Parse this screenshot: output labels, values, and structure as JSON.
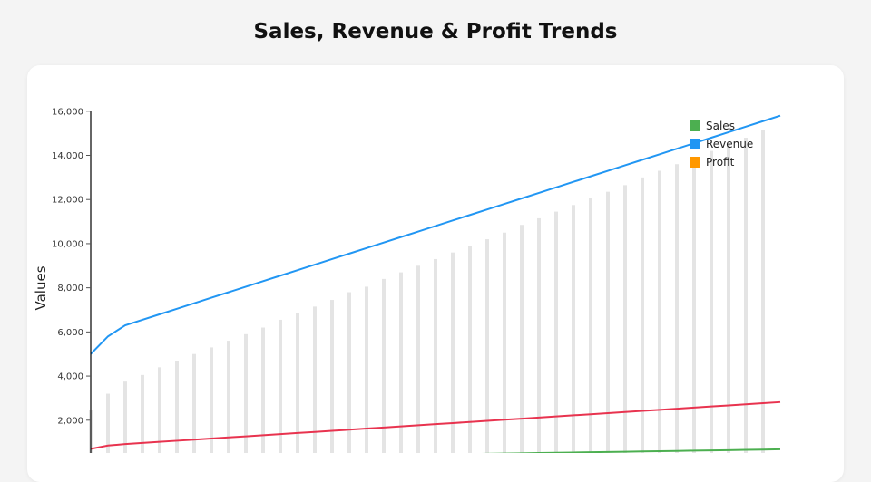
{
  "chart_data": {
    "type": "line",
    "title": "Sales, Revenue & Profit Trends",
    "xlabel": "",
    "ylabel": "Values",
    "ylim": [
      0,
      16000
    ],
    "yticks": [
      "2,000",
      "4,000",
      "6,000",
      "8,000",
      "10,000",
      "12,000",
      "14,000",
      "16,000"
    ],
    "ytick_values": [
      2000,
      4000,
      6000,
      8000,
      10000,
      12000,
      14000,
      16000
    ],
    "legend_position": "top-right",
    "grid": false,
    "bars": {
      "color": "#e4e4e4",
      "values": [
        2450,
        3200,
        3750,
        4050,
        4400,
        4700,
        5000,
        5300,
        5600,
        5900,
        6200,
        6550,
        6850,
        7150,
        7450,
        7800,
        8050,
        8400,
        8700,
        9000,
        9300,
        9600,
        9900,
        10200,
        10500,
        10850,
        11150,
        11450,
        11750,
        12050,
        12350,
        12650,
        13000,
        13300,
        13600,
        13900,
        14200,
        14500,
        14800,
        15150
      ]
    },
    "series": [
      {
        "name": "Sales",
        "color": "#4caf50",
        "values": [
          200,
          212,
          224,
          236,
          248,
          260,
          272,
          284,
          296,
          308,
          320,
          332,
          344,
          356,
          368,
          380,
          392,
          404,
          416,
          428,
          440,
          452,
          464,
          476,
          488,
          500,
          512,
          524,
          536,
          548,
          560,
          572,
          584,
          596,
          608,
          620,
          632,
          644,
          656,
          668,
          680
        ]
      },
      {
        "name": "Revenue",
        "color": "#2196f3",
        "values": [
          5000,
          5800,
          6300,
          6550,
          6800,
          7050,
          7300,
          7550,
          7800,
          8050,
          8300,
          8550,
          8800,
          9050,
          9300,
          9550,
          9800,
          10050,
          10300,
          10550,
          10800,
          11050,
          11300,
          11550,
          11800,
          12050,
          12300,
          12550,
          12800,
          13050,
          13300,
          13550,
          13800,
          14050,
          14300,
          14550,
          14800,
          15050,
          15300,
          15550,
          15800
        ]
      },
      {
        "name": "Profit",
        "color": "#ff9800",
        "line_color": "#e8334f",
        "values": [
          700,
          850,
          920,
          970,
          1020,
          1070,
          1120,
          1170,
          1220,
          1270,
          1320,
          1370,
          1420,
          1470,
          1520,
          1570,
          1620,
          1670,
          1720,
          1770,
          1820,
          1870,
          1920,
          1970,
          2020,
          2070,
          2120,
          2170,
          2220,
          2270,
          2320,
          2370,
          2420,
          2470,
          2520,
          2570,
          2620,
          2670,
          2720,
          2770,
          2820
        ]
      }
    ]
  }
}
